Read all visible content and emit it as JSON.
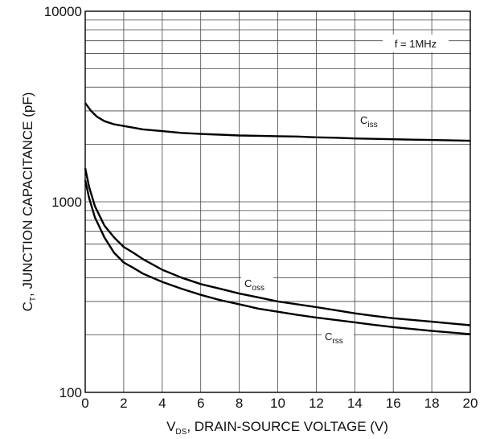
{
  "chart_data": {
    "type": "line",
    "x_axis": {
      "label_main": "V",
      "label_sub": "DS",
      "label_rest": ", DRAIN-SOURCE VOLTAGE (V)",
      "range": [
        0,
        20
      ],
      "ticks": [
        0,
        2,
        4,
        6,
        8,
        10,
        12,
        14,
        16,
        18,
        20
      ],
      "tick_labels": [
        "0",
        "2",
        "4",
        "6",
        "8",
        "10",
        "12",
        "14",
        "16",
        "18",
        "20"
      ]
    },
    "y_axis": {
      "label_main": "C",
      "label_sub": "T",
      "label_rest": ", JUNCTION CAPACITANCE (pF)",
      "scale": "log",
      "range": [
        100,
        10000
      ],
      "major_ticks": [
        100,
        1000,
        10000
      ],
      "tick_labels": [
        "100",
        "1000",
        "10000"
      ]
    },
    "grid": true,
    "annotation": "f = 1MHz",
    "series": [
      {
        "name": "C",
        "name_sub": "iss",
        "x": [
          0,
          0.3,
          0.6,
          1,
          1.5,
          2,
          2.5,
          3,
          4,
          5,
          6,
          7,
          8,
          9,
          10,
          11,
          12,
          13,
          14,
          15,
          16,
          17,
          18,
          19,
          20
        ],
        "y": [
          3300,
          3000,
          2800,
          2650,
          2550,
          2500,
          2450,
          2400,
          2350,
          2300,
          2270,
          2250,
          2230,
          2220,
          2210,
          2200,
          2180,
          2170,
          2150,
          2140,
          2130,
          2120,
          2110,
          2100,
          2090
        ]
      },
      {
        "name": "C",
        "name_sub": "oss",
        "x": [
          0,
          0.2,
          0.5,
          1,
          1.5,
          2,
          2.5,
          3,
          4,
          5,
          6,
          7,
          8,
          9,
          10,
          11,
          12,
          13,
          14,
          15,
          16,
          17,
          18,
          19,
          20
        ],
        "y": [
          1500,
          1200,
          950,
          750,
          650,
          580,
          540,
          500,
          440,
          400,
          370,
          350,
          330,
          315,
          300,
          290,
          280,
          270,
          260,
          252,
          245,
          240,
          235,
          230,
          225
        ]
      },
      {
        "name": "C",
        "name_sub": "rss",
        "x": [
          0,
          0.2,
          0.5,
          1,
          1.5,
          2,
          2.5,
          3,
          4,
          5,
          6,
          7,
          8,
          9,
          10,
          11,
          12,
          13,
          14,
          15,
          16,
          17,
          18,
          19,
          20
        ],
        "y": [
          1300,
          1050,
          830,
          650,
          540,
          480,
          450,
          420,
          380,
          350,
          325,
          305,
          290,
          275,
          265,
          255,
          247,
          240,
          233,
          226,
          220,
          215,
          210,
          206,
          202
        ]
      }
    ]
  }
}
